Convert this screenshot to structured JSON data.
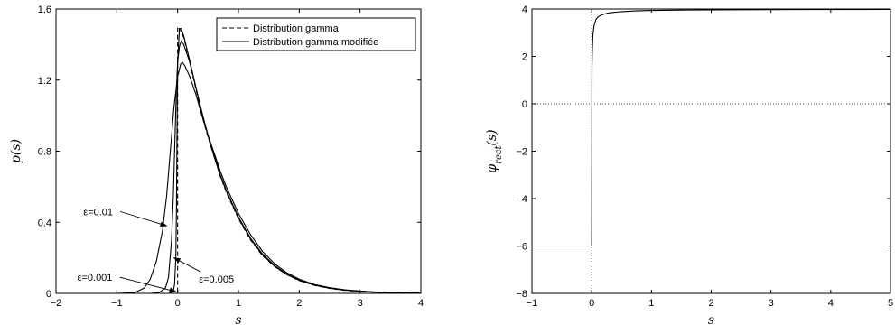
{
  "chart_data": [
    {
      "type": "line",
      "xlabel": "s",
      "ylabel": "p(s)",
      "xlim": [
        -2,
        4
      ],
      "ylim": [
        0,
        1.6
      ],
      "xticks": [
        -2,
        -1,
        0,
        1,
        2,
        3,
        4
      ],
      "yticks": [
        0,
        0.4,
        0.8,
        1.2,
        1.6
      ],
      "xtick_labels": [
        "−2",
        "−1",
        "0",
        "1",
        "2",
        "3",
        "4"
      ],
      "ytick_labels": [
        "0",
        "0.4",
        "0.8",
        "1.2",
        "1.6"
      ],
      "legend": {
        "placement": "top-right",
        "entries": [
          {
            "label": "Distribution gamma",
            "style": "dashed"
          },
          {
            "label": "Distribution gamma modifiée",
            "style": "solid"
          }
        ]
      },
      "series": [
        {
          "name": "Distribution gamma",
          "style": "dashed",
          "color": "#000000",
          "points": [
            [
              -2,
              0
            ],
            [
              0,
              0
            ],
            [
              0,
              1.5
            ],
            [
              0.05,
              1.48
            ],
            [
              0.1,
              1.44
            ],
            [
              0.2,
              1.3
            ],
            [
              0.3,
              1.15
            ],
            [
              0.4,
              1.0
            ],
            [
              0.5,
              0.88
            ],
            [
              0.6,
              0.77
            ],
            [
              0.7,
              0.66
            ],
            [
              0.8,
              0.57
            ],
            [
              1.0,
              0.42
            ],
            [
              1.2,
              0.3
            ],
            [
              1.4,
              0.21
            ],
            [
              1.6,
              0.15
            ],
            [
              1.8,
              0.105
            ],
            [
              2.0,
              0.072
            ],
            [
              2.25,
              0.045
            ],
            [
              2.5,
              0.028
            ],
            [
              2.75,
              0.017
            ],
            [
              3.0,
              0.01
            ],
            [
              3.25,
              0.006
            ],
            [
              3.5,
              0.003
            ],
            [
              4.0,
              0.001
            ]
          ]
        },
        {
          "name": "",
          "style": "solid",
          "color": "#000000",
          "points": [
            [
              -2,
              0
            ],
            [
              -0.15,
              0
            ],
            [
              -0.1,
              0.003
            ],
            [
              -0.07,
              0.015
            ],
            [
              -0.05,
              0.05
            ],
            [
              -0.03,
              0.2
            ],
            [
              -0.02,
              0.45
            ],
            [
              -0.01,
              0.9
            ],
            [
              0,
              1.3
            ],
            [
              0.03,
              1.49
            ],
            [
              0.06,
              1.49
            ],
            [
              0.1,
              1.45
            ],
            [
              0.2,
              1.31
            ],
            [
              0.3,
              1.16
            ],
            [
              0.4,
              1.01
            ],
            [
              0.5,
              0.885
            ],
            [
              0.6,
              0.77
            ],
            [
              0.7,
              0.665
            ],
            [
              0.8,
              0.575
            ],
            [
              1.0,
              0.425
            ],
            [
              1.2,
              0.305
            ],
            [
              1.4,
              0.215
            ],
            [
              1.6,
              0.15
            ],
            [
              1.8,
              0.105
            ],
            [
              2.0,
              0.073
            ],
            [
              2.25,
              0.046
            ],
            [
              2.5,
              0.029
            ],
            [
              2.75,
              0.018
            ],
            [
              3.0,
              0.011
            ],
            [
              3.25,
              0.0065
            ],
            [
              3.5,
              0.0035
            ],
            [
              4.0,
              0.001
            ]
          ]
        },
        {
          "name": "",
          "style": "solid",
          "color": "#000000",
          "points": [
            [
              -2,
              0
            ],
            [
              -0.45,
              0
            ],
            [
              -0.3,
              0.005
            ],
            [
              -0.2,
              0.03
            ],
            [
              -0.15,
              0.09
            ],
            [
              -0.1,
              0.3
            ],
            [
              -0.07,
              0.55
            ],
            [
              -0.05,
              0.8
            ],
            [
              -0.02,
              1.15
            ],
            [
              0,
              1.3
            ],
            [
              0.03,
              1.39
            ],
            [
              0.06,
              1.42
            ],
            [
              0.1,
              1.4
            ],
            [
              0.2,
              1.3
            ],
            [
              0.3,
              1.16
            ],
            [
              0.4,
              1.02
            ],
            [
              0.5,
              0.89
            ],
            [
              0.6,
              0.78
            ],
            [
              0.7,
              0.67
            ],
            [
              0.8,
              0.58
            ],
            [
              1.0,
              0.43
            ],
            [
              1.2,
              0.31
            ],
            [
              1.4,
              0.22
            ],
            [
              1.6,
              0.155
            ],
            [
              1.8,
              0.108
            ],
            [
              2.0,
              0.075
            ],
            [
              2.25,
              0.047
            ],
            [
              2.5,
              0.03
            ],
            [
              2.75,
              0.019
            ],
            [
              3.0,
              0.012
            ],
            [
              3.25,
              0.007
            ],
            [
              3.5,
              0.004
            ],
            [
              4.0,
              0.0012
            ]
          ]
        },
        {
          "name": "",
          "style": "solid",
          "color": "#000000",
          "points": [
            [
              -2,
              0
            ],
            [
              -1.0,
              0
            ],
            [
              -0.7,
              0.005
            ],
            [
              -0.55,
              0.03
            ],
            [
              -0.45,
              0.08
            ],
            [
              -0.35,
              0.18
            ],
            [
              -0.25,
              0.35
            ],
            [
              -0.18,
              0.55
            ],
            [
              -0.12,
              0.8
            ],
            [
              -0.06,
              1.05
            ],
            [
              0,
              1.22
            ],
            [
              0.05,
              1.29
            ],
            [
              0.08,
              1.3
            ],
            [
              0.12,
              1.28
            ],
            [
              0.2,
              1.22
            ],
            [
              0.3,
              1.12
            ],
            [
              0.4,
              1.0
            ],
            [
              0.5,
              0.89
            ],
            [
              0.6,
              0.79
            ],
            [
              0.7,
              0.69
            ],
            [
              0.8,
              0.6
            ],
            [
              1.0,
              0.45
            ],
            [
              1.2,
              0.33
            ],
            [
              1.4,
              0.235
            ],
            [
              1.6,
              0.165
            ],
            [
              1.8,
              0.115
            ],
            [
              2.0,
              0.08
            ],
            [
              2.25,
              0.05
            ],
            [
              2.5,
              0.032
            ],
            [
              2.75,
              0.02
            ],
            [
              3.0,
              0.013
            ],
            [
              3.25,
              0.008
            ],
            [
              3.5,
              0.0045
            ],
            [
              4.0,
              0.0013
            ]
          ]
        }
      ],
      "annotations": [
        {
          "text": "ε=0.01",
          "text_at": [
            -1.55,
            0.44
          ],
          "arrow_to": [
            -0.18,
            0.38
          ],
          "anchor": "start"
        },
        {
          "text": "ε=0.001",
          "text_at": [
            -1.65,
            0.07
          ],
          "arrow_to": [
            -0.03,
            0.01
          ],
          "anchor": "start"
        },
        {
          "text": "ε=0.005",
          "text_at": [
            0.35,
            0.06
          ],
          "arrow_to": [
            -0.06,
            0.2
          ],
          "anchor": "start"
        }
      ]
    },
    {
      "type": "line",
      "xlabel": "s",
      "ylabel": "φrect(s)",
      "xlim": [
        -1,
        5
      ],
      "ylim": [
        -8,
        4
      ],
      "xticks": [
        -1,
        0,
        1,
        2,
        3,
        4,
        5
      ],
      "yticks": [
        -8,
        -6,
        -4,
        -2,
        0,
        2,
        4
      ],
      "xtick_labels": [
        "−1",
        "0",
        "1",
        "2",
        "3",
        "4",
        "5"
      ],
      "ytick_labels": [
        "−8",
        "−6",
        "−4",
        "−2",
        "0",
        "2",
        "4"
      ],
      "reference_lines": {
        "x0_dotted": true,
        "y0_dotted": true
      },
      "series": [
        {
          "name": "",
          "style": "solid",
          "color": "#000000",
          "points": [
            [
              -1,
              -6
            ],
            [
              0,
              -6
            ],
            [
              0,
              -6
            ],
            [
              0.005,
              1.5
            ],
            [
              0.01,
              2.2
            ],
            [
              0.02,
              2.9
            ],
            [
              0.04,
              3.3
            ],
            [
              0.07,
              3.55
            ],
            [
              0.1,
              3.65
            ],
            [
              0.15,
              3.73
            ],
            [
              0.2,
              3.78
            ],
            [
              0.3,
              3.84
            ],
            [
              0.5,
              3.89
            ],
            [
              0.75,
              3.92
            ],
            [
              1.0,
              3.94
            ],
            [
              1.5,
              3.955
            ],
            [
              2.0,
              3.965
            ],
            [
              3.0,
              3.975
            ],
            [
              4.0,
              3.98
            ],
            [
              5.0,
              3.985
            ]
          ]
        }
      ]
    }
  ]
}
